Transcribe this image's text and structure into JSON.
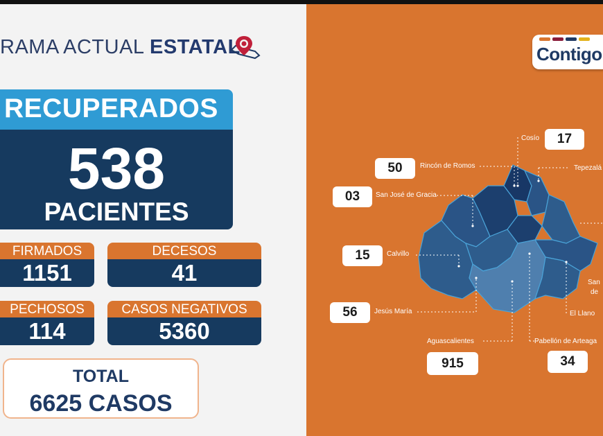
{
  "header": {
    "title_regular": "RAMA ACTUAL ",
    "title_bold": "ESTATAL"
  },
  "recovered": {
    "label": "RECUPERADOS",
    "value": "538",
    "unit": "PACIENTES"
  },
  "stats": [
    {
      "label": "FIRMADOS",
      "value": "1151"
    },
    {
      "label": "DECESOS",
      "value": "41"
    },
    {
      "label": "PECHOSOS",
      "value": "114"
    },
    {
      "label": "CASOS NEGATIVOS",
      "value": "5360"
    }
  ],
  "total": {
    "label": "TOTAL",
    "value": "6625 CASOS"
  },
  "logo": {
    "text": "Contigo",
    "bar_colors": [
      "#d9752f",
      "#8a1c3a",
      "#1f3a64",
      "#e3b21c"
    ]
  },
  "municipalities": [
    {
      "name": "Cosío",
      "value": "17"
    },
    {
      "name": "Rincón de Romos",
      "value": "50"
    },
    {
      "name": "Tepezalá",
      "value": ""
    },
    {
      "name": "San José de Gracia",
      "value": "03"
    },
    {
      "name": "Calvillo",
      "value": "15"
    },
    {
      "name": "San",
      "value": ""
    },
    {
      "name": "de",
      "value": ""
    },
    {
      "name": "Jesús María",
      "value": "56"
    },
    {
      "name": "El Llano",
      "value": ""
    },
    {
      "name": "Aguascalientes",
      "value": "915"
    },
    {
      "name": "Pabellón de Arteaga",
      "value": "34"
    }
  ],
  "colors": {
    "orange": "#d9752f",
    "navy": "#163a5f",
    "blue": "#2f9bd4",
    "map_dark": "#1c3f6e",
    "map_mid": "#2e5c8c",
    "map_light": "#4f7fae"
  }
}
